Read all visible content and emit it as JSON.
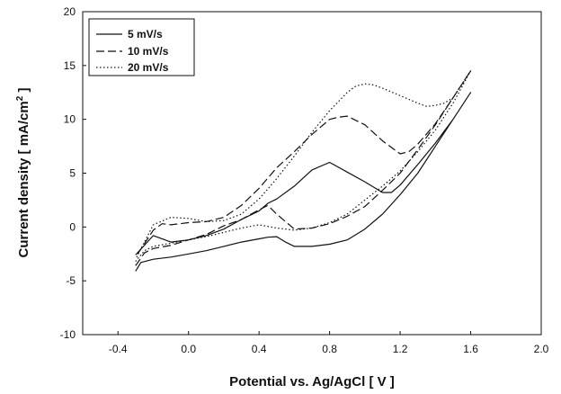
{
  "chart_data": {
    "type": "line",
    "title": "",
    "xlabel": "Potential vs. Ag/AgCl [ V ]",
    "ylabel_main": "Current density [ mA/cm",
    "ylabel_sup": "2",
    "ylabel_end": " ]",
    "xlim": [
      -0.6,
      2.0
    ],
    "ylim": [
      -10,
      20
    ],
    "xticks": [
      -0.4,
      0.0,
      0.4,
      0.8,
      1.2,
      1.6,
      2.0
    ],
    "xtick_labels": [
      "-0.4",
      "0.0",
      "0.4",
      "0.8",
      "1.2",
      "1.6",
      "2.0"
    ],
    "yticks": [
      -10,
      -5,
      0,
      5,
      10,
      15,
      20
    ],
    "ytick_labels": [
      "-10",
      "-5",
      "0",
      "5",
      "10",
      "15",
      "20"
    ],
    "grid": false,
    "legend_position": "top-left",
    "series": [
      {
        "name": "5 mV/s",
        "line_style": "solid",
        "color": "#111111",
        "x": [
          -0.3,
          -0.27,
          -0.2,
          -0.1,
          0.0,
          0.1,
          0.2,
          0.3,
          0.4,
          0.45,
          0.5,
          0.55,
          0.6,
          0.7,
          0.8,
          0.9,
          1.0,
          1.1,
          1.2,
          1.3,
          1.4,
          1.5,
          1.6,
          1.6,
          1.5,
          1.4,
          1.3,
          1.2,
          1.15,
          1.1,
          1.0,
          0.9,
          0.8,
          0.7,
          0.6,
          0.5,
          0.45,
          0.4,
          0.3,
          0.2,
          0.1,
          0.0,
          -0.1,
          -0.2,
          -0.3
        ],
        "y": [
          -4.1,
          -3.3,
          -3.0,
          -2.8,
          -2.5,
          -2.2,
          -1.8,
          -1.4,
          -1.1,
          -0.95,
          -0.9,
          -1.4,
          -1.8,
          -1.8,
          -1.6,
          -1.2,
          -0.2,
          1.2,
          3.0,
          5.0,
          7.5,
          10.0,
          12.5,
          12.5,
          10.0,
          7.8,
          5.8,
          3.9,
          3.2,
          3.2,
          4.2,
          5.1,
          6.0,
          5.3,
          3.8,
          2.6,
          2.2,
          1.5,
          0.7,
          -0.2,
          -0.8,
          -1.2,
          -1.4,
          -0.8,
          -2.6
        ]
      },
      {
        "name": "10 mV/s",
        "line_style": "dashed",
        "color": "#111111",
        "x": [
          -0.3,
          -0.25,
          -0.2,
          -0.1,
          0.0,
          0.1,
          0.2,
          0.3,
          0.4,
          0.45,
          0.5,
          0.6,
          0.7,
          0.8,
          0.9,
          1.0,
          1.1,
          1.2,
          1.3,
          1.4,
          1.5,
          1.6,
          1.6,
          1.5,
          1.4,
          1.3,
          1.25,
          1.2,
          1.1,
          1.0,
          0.9,
          0.85,
          0.8,
          0.7,
          0.6,
          0.5,
          0.4,
          0.3,
          0.2,
          0.1,
          0.0,
          -0.1,
          -0.15,
          -0.2,
          -0.3
        ],
        "y": [
          -3.6,
          -2.4,
          -2.0,
          -1.7,
          -1.2,
          -0.7,
          0.1,
          0.7,
          1.6,
          2.0,
          1.2,
          -0.2,
          -0.1,
          0.3,
          1.0,
          1.9,
          3.4,
          5.0,
          7.2,
          9.5,
          12.0,
          14.5,
          14.5,
          12.0,
          9.6,
          7.7,
          7.0,
          6.8,
          8.0,
          9.5,
          10.3,
          10.2,
          10.0,
          8.6,
          7.0,
          5.5,
          3.6,
          2.0,
          0.9,
          0.5,
          0.4,
          0.2,
          0.3,
          -0.3,
          -2.8
        ]
      },
      {
        "name": "20 mV/s",
        "line_style": "dotted",
        "color": "#111111",
        "x": [
          -0.3,
          -0.25,
          -0.2,
          -0.1,
          0.0,
          0.1,
          0.2,
          0.3,
          0.4,
          0.5,
          0.6,
          0.7,
          0.8,
          0.9,
          1.0,
          1.1,
          1.2,
          1.3,
          1.4,
          1.5,
          1.6,
          1.6,
          1.5,
          1.45,
          1.4,
          1.35,
          1.3,
          1.2,
          1.1,
          1.05,
          1.0,
          0.95,
          0.9,
          0.8,
          0.7,
          0.6,
          0.5,
          0.4,
          0.3,
          0.2,
          0.1,
          0.0,
          -0.1,
          -0.2,
          -0.3
        ],
        "y": [
          -3.2,
          -2.2,
          -1.8,
          -1.5,
          -1.2,
          -0.9,
          -0.5,
          -0.1,
          0.2,
          -0.1,
          -0.3,
          -0.1,
          0.4,
          1.2,
          2.5,
          3.8,
          5.2,
          7.0,
          9.0,
          11.5,
          14.5,
          14.5,
          12.0,
          11.5,
          11.3,
          11.2,
          11.5,
          12.2,
          12.9,
          13.2,
          13.3,
          13.1,
          12.5,
          10.8,
          8.8,
          6.6,
          4.5,
          2.6,
          1.2,
          0.6,
          0.5,
          0.8,
          0.9,
          0.2,
          -3.0
        ]
      }
    ]
  }
}
